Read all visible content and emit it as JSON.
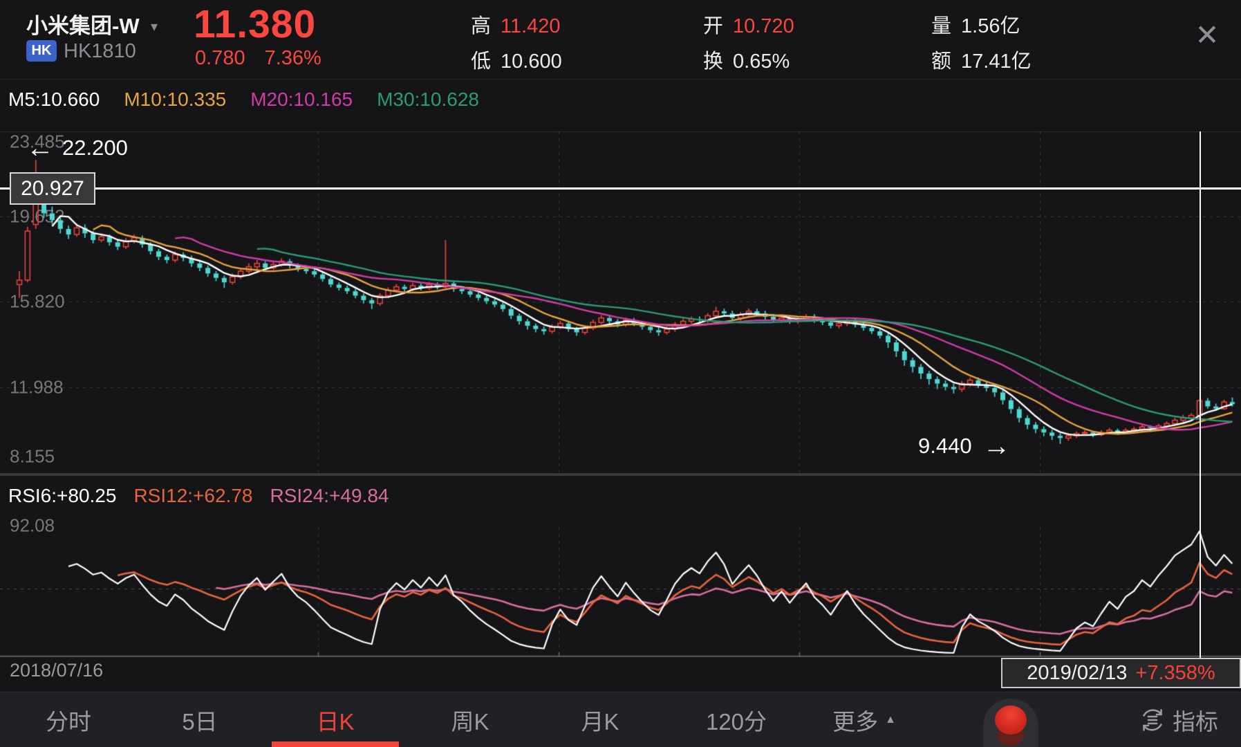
{
  "header": {
    "stock_name": "小米集团-W",
    "market_badge": "HK",
    "stock_code": "HK1810",
    "price": "11.380",
    "change": "0.780",
    "change_pct": "7.36%",
    "stats": {
      "high": {
        "label": "高",
        "value": "11.420"
      },
      "low": {
        "label": "低",
        "value": "10.600"
      },
      "open": {
        "label": "开",
        "value": "10.720"
      },
      "turnover": {
        "label": "换",
        "value": "0.65%"
      },
      "volume": {
        "label": "量",
        "value": "1.56亿"
      },
      "amount": {
        "label": "额",
        "value": "17.41亿"
      }
    }
  },
  "icons": {
    "dropdown": "▾",
    "close": "✕",
    "more_arrow": "▲",
    "left_arrow": "←",
    "right_arrow": "→"
  },
  "ma_legend": {
    "m5": "M5:10.660",
    "m10": "M10:10.335",
    "m20": "M20:10.165",
    "m30": "M30:10.628"
  },
  "axis": {
    "y_labels": [
      "23.485",
      "19.652",
      "15.820",
      "11.988",
      "8.155"
    ]
  },
  "annotations": {
    "high_label": "22.200",
    "ref_label": "20.927",
    "low_label": "9.440"
  },
  "rsi_legend": {
    "rsi6": "RSI6:+80.25",
    "rsi12": "RSI12:+62.78",
    "rsi24": "RSI24:+49.84",
    "y_max_label": "92.08"
  },
  "dates": {
    "start": "2018/07/16",
    "end": "2019/02/13",
    "end_change_pct": "+7.358%"
  },
  "nav": {
    "tabs": [
      "分时",
      "5日",
      "日K",
      "周K",
      "月K",
      "120分",
      "更多"
    ],
    "active_tab": "日K",
    "indicator_label": "指标"
  },
  "colors": {
    "accent_red": "#fb4740",
    "candle_up": "#f2433a",
    "candle_down": "#4fd8d2",
    "badge_blue": "#3e63c8",
    "ma": [
      "#ffffff",
      "#e8a43d",
      "#cf3ca8",
      "#2b9b77"
    ],
    "rsi": [
      "#ffffff",
      "#e8643c",
      "#d86e9f"
    ],
    "grid": "rgba(255,255,255,0.16)",
    "axis_line": "rgba(255,255,255,0.30)"
  },
  "chart_data": {
    "type": "candlestick",
    "title": "小米集团-W HK1810 日K",
    "ylim": [
      8.155,
      23.485
    ],
    "h_gridline_values": [
      19.652,
      15.82,
      11.988
    ],
    "ref_line_value": 20.927,
    "crosshair_index": 144,
    "ma_periods": [
      5,
      10,
      20,
      30
    ],
    "rsi_periods": [
      6,
      12,
      24
    ],
    "rsi_mid": 50,
    "candles": [
      [
        16.6,
        17.2,
        16.0,
        16.8
      ],
      [
        16.8,
        19.2,
        16.7,
        19.0
      ],
      [
        19.3,
        22.2,
        19.1,
        21.0
      ],
      [
        20.8,
        21.1,
        19.6,
        19.8
      ],
      [
        19.8,
        20.1,
        19.3,
        19.5
      ],
      [
        19.5,
        19.65,
        18.9,
        19.1
      ],
      [
        19.1,
        19.25,
        18.65,
        18.85
      ],
      [
        18.85,
        19.35,
        18.75,
        19.15
      ],
      [
        19.15,
        19.3,
        18.7,
        18.9
      ],
      [
        18.9,
        19.0,
        18.45,
        18.6
      ],
      [
        18.6,
        18.9,
        18.5,
        18.75
      ],
      [
        18.75,
        18.85,
        18.35,
        18.5
      ],
      [
        18.5,
        18.6,
        18.15,
        18.3
      ],
      [
        18.3,
        18.7,
        18.2,
        18.55
      ],
      [
        18.55,
        18.85,
        18.45,
        18.7
      ],
      [
        18.7,
        18.8,
        18.25,
        18.4
      ],
      [
        18.4,
        18.5,
        17.95,
        18.1
      ],
      [
        18.1,
        18.2,
        17.7,
        17.85
      ],
      [
        17.85,
        17.95,
        17.55,
        17.7
      ],
      [
        17.7,
        18.1,
        17.6,
        17.95
      ],
      [
        17.95,
        18.05,
        17.65,
        17.8
      ],
      [
        17.8,
        17.9,
        17.4,
        17.55
      ],
      [
        17.55,
        17.65,
        17.2,
        17.35
      ],
      [
        17.35,
        17.45,
        16.95,
        17.1
      ],
      [
        17.1,
        17.2,
        16.75,
        16.9
      ],
      [
        16.9,
        17.0,
        16.45,
        16.7
      ],
      [
        16.7,
        17.1,
        16.6,
        16.95
      ],
      [
        16.95,
        17.35,
        16.85,
        17.2
      ],
      [
        17.2,
        17.55,
        17.1,
        17.4
      ],
      [
        17.4,
        17.7,
        17.3,
        17.55
      ],
      [
        17.55,
        17.65,
        17.25,
        17.35
      ],
      [
        17.35,
        17.62,
        17.25,
        17.5
      ],
      [
        17.5,
        17.78,
        17.4,
        17.65
      ],
      [
        17.65,
        17.75,
        17.33,
        17.45
      ],
      [
        17.45,
        17.55,
        17.18,
        17.3
      ],
      [
        17.3,
        17.42,
        17.08,
        17.2
      ],
      [
        17.2,
        17.3,
        16.93,
        17.05
      ],
      [
        17.05,
        17.15,
        16.73,
        16.85
      ],
      [
        16.85,
        16.95,
        16.48,
        16.6
      ],
      [
        16.6,
        16.7,
        16.33,
        16.45
      ],
      [
        16.45,
        16.55,
        16.18,
        16.3
      ],
      [
        16.3,
        16.4,
        15.98,
        16.1
      ],
      [
        16.1,
        16.2,
        15.75,
        15.9
      ],
      [
        15.9,
        16.0,
        15.5,
        15.75
      ],
      [
        15.75,
        16.22,
        15.65,
        16.1
      ],
      [
        16.1,
        16.48,
        16.0,
        16.35
      ],
      [
        16.35,
        16.62,
        16.25,
        16.5
      ],
      [
        16.5,
        16.6,
        16.28,
        16.4
      ],
      [
        16.4,
        16.68,
        16.3,
        16.55
      ],
      [
        16.55,
        16.65,
        16.33,
        16.45
      ],
      [
        16.45,
        16.72,
        16.35,
        16.6
      ],
      [
        16.6,
        16.7,
        16.38,
        16.5
      ],
      [
        16.5,
        18.6,
        16.4,
        16.65
      ],
      [
        16.65,
        16.78,
        16.28,
        16.4
      ],
      [
        16.4,
        16.52,
        16.18,
        16.3
      ],
      [
        16.3,
        16.4,
        16.03,
        16.15
      ],
      [
        16.15,
        16.25,
        15.88,
        16.0
      ],
      [
        16.0,
        16.1,
        15.73,
        15.85
      ],
      [
        15.85,
        15.95,
        15.58,
        15.7
      ],
      [
        15.7,
        15.8,
        15.38,
        15.5
      ],
      [
        15.5,
        15.6,
        15.05,
        15.2
      ],
      [
        15.2,
        15.3,
        14.8,
        14.95
      ],
      [
        14.95,
        15.05,
        14.58,
        14.75
      ],
      [
        14.75,
        14.85,
        14.45,
        14.6
      ],
      [
        14.6,
        14.72,
        14.35,
        14.5
      ],
      [
        14.5,
        14.82,
        14.4,
        14.7
      ],
      [
        14.7,
        14.97,
        14.6,
        14.85
      ],
      [
        14.85,
        14.95,
        14.48,
        14.6
      ],
      [
        14.6,
        14.7,
        14.3,
        14.45
      ],
      [
        14.45,
        14.77,
        14.35,
        14.65
      ],
      [
        14.65,
        15.02,
        14.55,
        14.9
      ],
      [
        14.9,
        15.22,
        14.8,
        15.1
      ],
      [
        15.1,
        15.2,
        14.83,
        14.95
      ],
      [
        14.95,
        15.05,
        14.68,
        14.8
      ],
      [
        14.8,
        15.12,
        14.7,
        15.0
      ],
      [
        15.0,
        15.1,
        14.73,
        14.85
      ],
      [
        14.85,
        14.95,
        14.58,
        14.7
      ],
      [
        14.7,
        14.8,
        14.43,
        14.55
      ],
      [
        14.55,
        14.67,
        14.3,
        14.45
      ],
      [
        14.45,
        14.72,
        14.35,
        14.6
      ],
      [
        14.6,
        14.92,
        14.48,
        14.8
      ],
      [
        14.8,
        15.07,
        14.68,
        14.95
      ],
      [
        14.95,
        15.17,
        14.83,
        15.05
      ],
      [
        15.05,
        15.17,
        14.88,
        15.0
      ],
      [
        15.0,
        15.32,
        14.88,
        15.2
      ],
      [
        15.2,
        15.6,
        15.08,
        15.4
      ],
      [
        15.4,
        15.52,
        15.18,
        15.3
      ],
      [
        15.3,
        15.42,
        14.98,
        15.1
      ],
      [
        15.1,
        15.37,
        14.98,
        15.25
      ],
      [
        15.25,
        15.52,
        15.13,
        15.4
      ],
      [
        15.4,
        15.52,
        15.18,
        15.3
      ],
      [
        15.3,
        15.42,
        15.03,
        15.15
      ],
      [
        15.15,
        15.27,
        14.88,
        15.0
      ],
      [
        15.0,
        15.22,
        14.88,
        15.1
      ],
      [
        15.1,
        15.22,
        14.83,
        14.95
      ],
      [
        14.95,
        15.17,
        14.83,
        15.05
      ],
      [
        15.05,
        15.27,
        14.93,
        15.15
      ],
      [
        15.15,
        15.27,
        14.88,
        15.0
      ],
      [
        15.0,
        15.12,
        14.78,
        14.9
      ],
      [
        14.9,
        15.02,
        14.63,
        14.75
      ],
      [
        14.75,
        14.97,
        14.63,
        14.85
      ],
      [
        14.85,
        15.07,
        14.73,
        14.95
      ],
      [
        14.95,
        15.07,
        14.68,
        14.8
      ],
      [
        14.8,
        14.92,
        14.53,
        14.65
      ],
      [
        14.65,
        14.77,
        14.38,
        14.5
      ],
      [
        14.5,
        14.62,
        14.18,
        14.3
      ],
      [
        14.3,
        14.42,
        13.75,
        14.0
      ],
      [
        14.0,
        14.12,
        13.35,
        13.6
      ],
      [
        13.6,
        13.72,
        12.95,
        13.2
      ],
      [
        13.2,
        13.32,
        12.65,
        12.9
      ],
      [
        12.9,
        13.02,
        12.35,
        12.6
      ],
      [
        12.6,
        12.72,
        12.1,
        12.35
      ],
      [
        12.35,
        12.47,
        11.9,
        12.15
      ],
      [
        12.15,
        12.3,
        11.85,
        12.0
      ],
      [
        12.0,
        12.15,
        11.7,
        11.9
      ],
      [
        11.9,
        12.27,
        11.78,
        12.15
      ],
      [
        12.15,
        12.42,
        12.03,
        12.3
      ],
      [
        12.3,
        12.42,
        11.95,
        12.1
      ],
      [
        12.1,
        12.22,
        11.8,
        11.95
      ],
      [
        11.95,
        12.07,
        11.55,
        11.75
      ],
      [
        11.75,
        11.87,
        11.2,
        11.4
      ],
      [
        11.4,
        11.52,
        10.8,
        11.0
      ],
      [
        11.0,
        11.12,
        10.4,
        10.6
      ],
      [
        10.6,
        10.72,
        10.1,
        10.3
      ],
      [
        10.3,
        10.42,
        9.92,
        10.1
      ],
      [
        10.1,
        10.22,
        9.78,
        9.95
      ],
      [
        9.95,
        10.07,
        9.62,
        9.8
      ],
      [
        9.8,
        9.92,
        9.44,
        9.7
      ],
      [
        9.7,
        9.92,
        9.58,
        9.8
      ],
      [
        9.8,
        10.0,
        9.7,
        9.9
      ],
      [
        9.9,
        10.05,
        9.8,
        9.95
      ],
      [
        9.95,
        10.03,
        9.73,
        9.85
      ],
      [
        9.85,
        10.05,
        9.78,
        9.95
      ],
      [
        9.95,
        10.15,
        9.88,
        10.05
      ],
      [
        10.05,
        10.12,
        9.85,
        9.95
      ],
      [
        9.95,
        10.15,
        9.88,
        10.05
      ],
      [
        10.05,
        10.2,
        9.95,
        10.1
      ],
      [
        10.1,
        10.3,
        10.02,
        10.2
      ],
      [
        10.2,
        10.28,
        10.05,
        10.15
      ],
      [
        10.15,
        10.35,
        10.08,
        10.25
      ],
      [
        10.25,
        10.45,
        10.15,
        10.35
      ],
      [
        10.35,
        10.62,
        10.25,
        10.5
      ],
      [
        10.5,
        10.75,
        10.4,
        10.6
      ],
      [
        10.6,
        10.82,
        10.52,
        10.72
      ],
      [
        10.72,
        11.42,
        10.6,
        11.38
      ],
      [
        11.38,
        11.5,
        11.02,
        11.12
      ],
      [
        11.12,
        11.25,
        10.92,
        11.02
      ],
      [
        11.02,
        11.42,
        10.97,
        11.32
      ],
      [
        11.32,
        11.52,
        11.12,
        11.22
      ]
    ]
  }
}
